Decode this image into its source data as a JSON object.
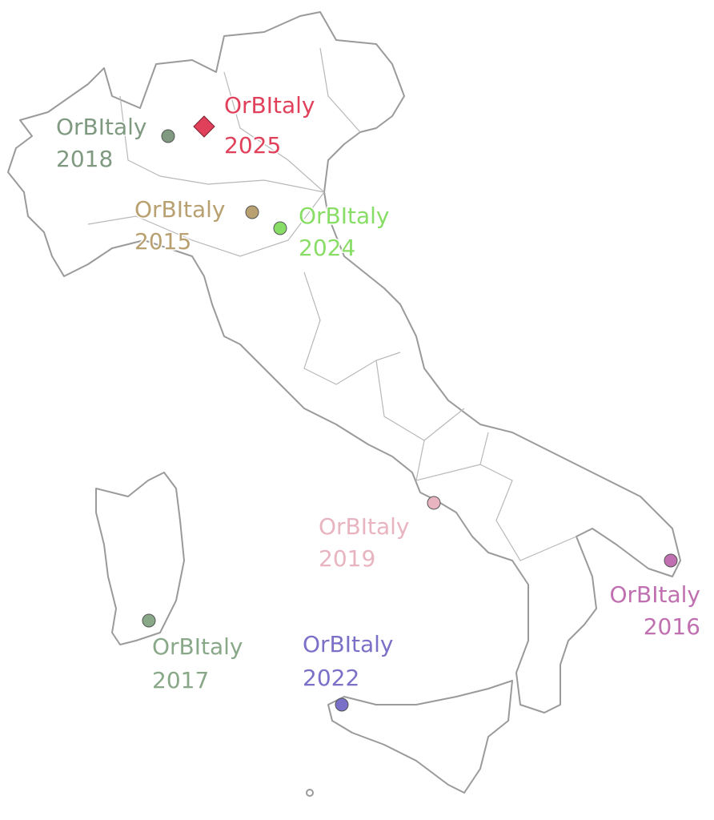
{
  "events": [
    {
      "name": "OrBItaly",
      "year": "2018",
      "color": "#7f9a80"
    },
    {
      "name": "OrBItaly",
      "year": "2025",
      "color": "#e0405a",
      "marker": "diamond"
    },
    {
      "name": "OrBItaly",
      "year": "2015",
      "color": "#b8a070"
    },
    {
      "name": "OrBItaly",
      "year": "2024",
      "color": "#88dd66"
    },
    {
      "name": "OrBItaly",
      "year": "2019",
      "color": "#e8b4c0"
    },
    {
      "name": "OrBItaly",
      "year": "2016",
      "color": "#c070b0"
    },
    {
      "name": "OrBItaly",
      "year": "2017",
      "color": "#88a888"
    },
    {
      "name": "OrBItaly",
      "year": "2022",
      "color": "#7a70c8"
    }
  ]
}
